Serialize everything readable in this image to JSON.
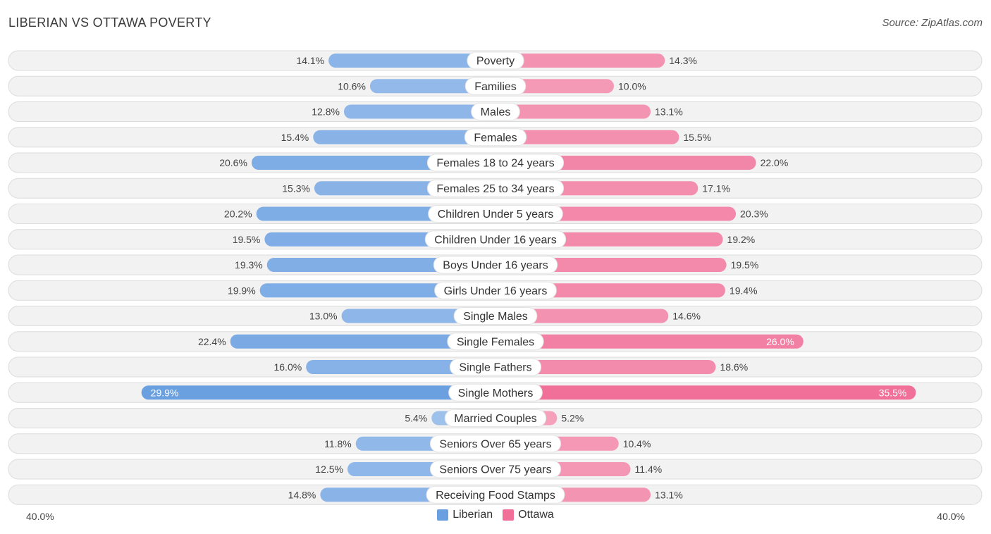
{
  "title": "LIBERIAN VS OTTAWA POVERTY",
  "source": "Source: ZipAtlas.com",
  "colors": {
    "liberian": "#6a9fe0",
    "liberian_light": "#a9c8ef",
    "ottawa": "#f07099",
    "ottawa_light": "#f6a9c2",
    "row_bg": "#f2f2f2",
    "row_border": "#dcdcdc"
  },
  "chart_data": {
    "type": "bar",
    "orientation": "horizontal-diverging",
    "axis_max": 40.0,
    "axis_left_label": "40.0%",
    "axis_right_label": "40.0%",
    "categories": [
      "Poverty",
      "Families",
      "Males",
      "Females",
      "Females 18 to 24 years",
      "Females 25 to 34 years",
      "Children Under 5 years",
      "Children Under 16 years",
      "Boys Under 16 years",
      "Girls Under 16 years",
      "Single Males",
      "Single Females",
      "Single Fathers",
      "Single Mothers",
      "Married Couples",
      "Seniors Over 65 years",
      "Seniors Over 75 years",
      "Receiving Food Stamps"
    ],
    "series": [
      {
        "name": "Liberian",
        "values": [
          14.1,
          10.6,
          12.8,
          15.4,
          20.6,
          15.3,
          20.2,
          19.5,
          19.3,
          19.9,
          13.0,
          22.4,
          16.0,
          29.9,
          5.4,
          11.8,
          12.5,
          14.8
        ],
        "labels": [
          "14.1%",
          "10.6%",
          "12.8%",
          "15.4%",
          "20.6%",
          "15.3%",
          "20.2%",
          "19.5%",
          "19.3%",
          "19.9%",
          "13.0%",
          "22.4%",
          "16.0%",
          "29.9%",
          "5.4%",
          "11.8%",
          "12.5%",
          "14.8%"
        ]
      },
      {
        "name": "Ottawa",
        "values": [
          14.3,
          10.0,
          13.1,
          15.5,
          22.0,
          17.1,
          20.3,
          19.2,
          19.5,
          19.4,
          14.6,
          26.0,
          18.6,
          35.5,
          5.2,
          10.4,
          11.4,
          13.1
        ],
        "labels": [
          "14.3%",
          "10.0%",
          "13.1%",
          "15.5%",
          "22.0%",
          "17.1%",
          "20.3%",
          "19.2%",
          "19.5%",
          "19.4%",
          "14.6%",
          "26.0%",
          "18.6%",
          "35.5%",
          "5.2%",
          "10.4%",
          "11.4%",
          "13.1%"
        ]
      }
    ],
    "legend": [
      "Liberian",
      "Ottawa"
    ],
    "legend_position": "bottom-center"
  }
}
